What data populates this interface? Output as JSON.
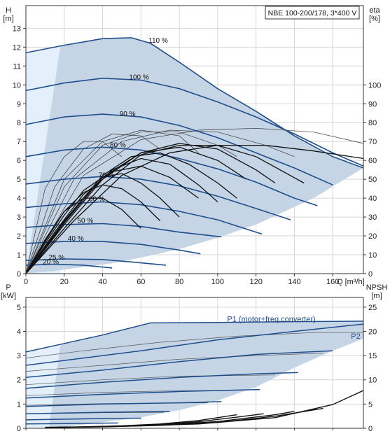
{
  "title_box": "NBE 100-200/178, 3*400 V",
  "colors": {
    "envelope_fill": "#c5d5e6",
    "light_fill": "#e3f0fb",
    "curve_dark_blue": "#1f4e8c",
    "curve_thin": "#333333",
    "eff_black": "#111111"
  },
  "chart_data": [
    {
      "type": "line",
      "name": "pump-curves-head",
      "xlabel": "Q [m³/h]",
      "ylabel_lines": [
        "H",
        "[m]"
      ],
      "y2label_lines": [
        "eta",
        "[%]"
      ],
      "xlim": [
        0,
        176
      ],
      "ylim": [
        0,
        14.2
      ],
      "y2lim": [
        0,
        142
      ],
      "xticks": [
        0,
        20,
        40,
        60,
        80,
        100,
        120,
        140,
        160
      ],
      "yticks": [
        0,
        1,
        2,
        3,
        4,
        5,
        6,
        7,
        8,
        9,
        10,
        11,
        12,
        13
      ],
      "y2ticks": [
        0,
        10,
        20,
        30,
        40,
        50,
        60,
        70,
        80,
        90,
        100
      ],
      "grid": true,
      "head_curves": [
        {
          "label": "110 %",
          "label_at": [
            69,
            12.35
          ],
          "x": [
            0,
            20,
            40,
            55,
            65,
            80,
            100,
            120,
            140,
            160,
            176
          ],
          "y": [
            11.7,
            12.1,
            12.45,
            12.5,
            12.2,
            11.2,
            9.8,
            8.6,
            7.3,
            6.2,
            5.6
          ]
        },
        {
          "label": "100 %",
          "label_at": [
            59,
            10.4
          ],
          "x": [
            0,
            20,
            40,
            60,
            80,
            100,
            120,
            140,
            160,
            176
          ],
          "y": [
            9.7,
            10.1,
            10.35,
            10.25,
            9.8,
            9.1,
            8.3,
            7.4,
            6.4,
            5.7
          ]
        },
        {
          "label": "90 %",
          "label_at": [
            53,
            8.45
          ],
          "x": [
            0,
            20,
            40,
            60,
            80,
            100,
            120,
            140,
            160
          ],
          "y": [
            7.9,
            8.3,
            8.45,
            8.3,
            7.85,
            7.2,
            6.4,
            5.6,
            4.7
          ]
        },
        {
          "label": "80 %",
          "label_at": [
            48,
            6.8
          ],
          "x": [
            0,
            20,
            40,
            60,
            80,
            100,
            120,
            140,
            152
          ],
          "y": [
            6.2,
            6.55,
            6.7,
            6.55,
            6.1,
            5.55,
            4.85,
            4.0,
            3.6
          ]
        },
        {
          "label": "70 %",
          "label_at": [
            42,
            5.2
          ],
          "x": [
            0,
            20,
            40,
            60,
            80,
            100,
            120,
            138
          ],
          "y": [
            4.75,
            5.0,
            5.15,
            5.0,
            4.65,
            4.1,
            3.45,
            2.85
          ]
        },
        {
          "label": "60 %",
          "label_at": [
            37,
            3.95
          ],
          "x": [
            0,
            20,
            40,
            60,
            80,
            100,
            123
          ],
          "y": [
            3.5,
            3.7,
            3.8,
            3.65,
            3.3,
            2.85,
            2.1
          ]
        },
        {
          "label": "50 %",
          "label_at": [
            31,
            2.8
          ],
          "x": [
            0,
            20,
            40,
            60,
            80,
            102
          ],
          "y": [
            2.45,
            2.6,
            2.65,
            2.5,
            2.2,
            1.95
          ]
        },
        {
          "label": "40 %",
          "label_at": [
            26,
            1.85
          ],
          "x": [
            0,
            20,
            40,
            60,
            80,
            91
          ],
          "y": [
            1.6,
            1.7,
            1.7,
            1.55,
            1.25,
            1.05
          ]
        },
        {
          "label": "25 %",
          "label_at": [
            16,
            0.85
          ],
          "x": [
            0,
            20,
            40,
            55,
            73
          ],
          "y": [
            0.7,
            0.78,
            0.75,
            0.62,
            0.45
          ]
        },
        {
          "label": "20 %",
          "label_at": [
            13,
            0.62
          ],
          "x": [
            0,
            15,
            30,
            45
          ],
          "y": [
            0.45,
            0.5,
            0.45,
            0.3
          ]
        }
      ],
      "efficiency_curves_dark": [
        {
          "x": [
            0,
            10,
            20,
            30,
            40,
            50,
            60
          ],
          "y": [
            0,
            18,
            33,
            40,
            40,
            34,
            24
          ]
        },
        {
          "x": [
            0,
            10,
            20,
            30,
            40,
            50,
            60,
            70
          ],
          "y": [
            0,
            17,
            33,
            43,
            47,
            45,
            38,
            28
          ]
        },
        {
          "x": [
            0,
            10,
            20,
            30,
            40,
            50,
            60,
            70,
            80
          ],
          "y": [
            0,
            16,
            31,
            44,
            51,
            53,
            48,
            40,
            30
          ]
        },
        {
          "x": [
            0,
            15,
            30,
            45,
            60,
            75,
            90
          ],
          "y": [
            0,
            22,
            42,
            54,
            57,
            51,
            40
          ]
        },
        {
          "x": [
            0,
            15,
            30,
            45,
            60,
            75,
            90,
            100
          ],
          "y": [
            0,
            21,
            40,
            55,
            61,
            58,
            47,
            38
          ]
        },
        {
          "x": [
            0,
            20,
            40,
            55,
            70,
            85,
            100,
            110
          ],
          "y": [
            0,
            28,
            52,
            62,
            64,
            58,
            48,
            40
          ]
        },
        {
          "x": [
            0,
            20,
            40,
            60,
            80,
            100,
            115
          ],
          "y": [
            0,
            27,
            51,
            64,
            67,
            60,
            50
          ]
        },
        {
          "x": [
            0,
            20,
            40,
            60,
            80,
            100,
            120,
            130
          ],
          "y": [
            0,
            26,
            50,
            64,
            69,
            66,
            55,
            48
          ]
        },
        {
          "x": [
            0,
            20,
            40,
            60,
            80,
            100,
            120,
            145
          ],
          "y": [
            0,
            24,
            47,
            63,
            68,
            68,
            62,
            48
          ]
        },
        {
          "x": [
            0,
            25,
            50,
            75,
            100,
            125,
            150,
            176
          ],
          "y": [
            0,
            28,
            52,
            64,
            68,
            68,
            65,
            61
          ]
        }
      ],
      "efficiency_curves_thin": [
        {
          "x": [
            0,
            10,
            20,
            30,
            40,
            50
          ],
          "y": [
            0,
            45,
            62,
            70,
            70,
            62
          ]
        },
        {
          "x": [
            0,
            15,
            30,
            45,
            60,
            70
          ],
          "y": [
            0,
            46,
            66,
            74,
            73,
            66
          ]
        },
        {
          "x": [
            0,
            20,
            40,
            60,
            80,
            90
          ],
          "y": [
            0,
            50,
            70,
            76,
            73,
            64
          ]
        },
        {
          "x": [
            0,
            20,
            40,
            60,
            80,
            100,
            110
          ],
          "y": [
            0,
            46,
            68,
            75,
            75,
            68,
            62
          ]
        },
        {
          "x": [
            0,
            25,
            50,
            75,
            100,
            125,
            140
          ],
          "y": [
            0,
            50,
            70,
            76,
            75,
            68,
            62
          ]
        },
        {
          "x": [
            0,
            30,
            60,
            90,
            120,
            150,
            176
          ],
          "y": [
            0,
            52,
            71,
            76,
            77,
            75,
            69
          ]
        }
      ]
    },
    {
      "type": "line",
      "name": "power-npsh",
      "xlim": [
        0,
        176
      ],
      "ylim": [
        0,
        5.4
      ],
      "y2lim": [
        0,
        27
      ],
      "ylabel_lines": [
        "P",
        "[kW]"
      ],
      "y2label_lines": [
        "NPSH",
        "[m]"
      ],
      "yticks": [
        0,
        1,
        2,
        3,
        4,
        5
      ],
      "y2ticks": [
        0,
        5,
        10,
        15,
        20,
        25
      ],
      "grid": true,
      "series_labels": [
        {
          "name": "P1 (motor+freq.converter)",
          "label_at": [
            128,
            4.4
          ]
        },
        {
          "name": "P2",
          "label_at": [
            172,
            3.7
          ]
        }
      ],
      "power_curves_dark": [
        {
          "x": [
            0,
            20,
            40,
            65,
            100,
            140,
            176
          ],
          "y": [
            3.15,
            3.5,
            3.85,
            4.35,
            4.37,
            4.4,
            4.42
          ]
        },
        {
          "x": [
            0,
            30,
            60,
            100,
            140,
            176
          ],
          "y": [
            2.6,
            2.9,
            3.2,
            3.65,
            4.0,
            4.3
          ]
        },
        {
          "x": [
            0,
            40,
            80,
            120,
            160
          ],
          "y": [
            2.1,
            2.4,
            2.75,
            3.05,
            3.2
          ]
        },
        {
          "x": [
            0,
            40,
            80,
            120,
            142
          ],
          "y": [
            1.65,
            1.9,
            2.1,
            2.25,
            2.3
          ]
        },
        {
          "x": [
            0,
            40,
            80,
            122
          ],
          "y": [
            1.25,
            1.4,
            1.52,
            1.6
          ]
        },
        {
          "x": [
            0,
            40,
            80,
            102
          ],
          "y": [
            0.9,
            1.0,
            1.05,
            1.1
          ]
        },
        {
          "x": [
            0,
            40,
            75
          ],
          "y": [
            0.6,
            0.66,
            0.7
          ]
        },
        {
          "x": [
            0,
            40,
            60
          ],
          "y": [
            0.35,
            0.4,
            0.42
          ]
        },
        {
          "x": [
            0,
            25,
            48
          ],
          "y": [
            0.18,
            0.2,
            0.22
          ]
        }
      ],
      "power_curves_thin": [
        {
          "x": [
            0,
            30,
            70,
            110,
            150,
            176
          ],
          "y": [
            2.9,
            3.2,
            3.55,
            3.8,
            3.95,
            3.95
          ]
        },
        {
          "x": [
            0,
            40,
            80,
            120,
            155
          ],
          "y": [
            2.35,
            2.6,
            2.85,
            3.0,
            3.1
          ]
        },
        {
          "x": [
            0,
            40,
            80,
            130
          ],
          "y": [
            1.8,
            2.0,
            2.15,
            2.2
          ]
        },
        {
          "x": [
            0,
            40,
            80,
            115
          ],
          "y": [
            1.35,
            1.48,
            1.55,
            1.58
          ]
        },
        {
          "x": [
            0,
            40,
            95
          ],
          "y": [
            0.95,
            1.02,
            1.05
          ]
        },
        {
          "x": [
            0,
            40,
            72
          ],
          "y": [
            0.6,
            0.64,
            0.66
          ]
        }
      ],
      "npsh_curves": [
        {
          "x": [
            10,
            30,
            50,
            70,
            90,
            110
          ],
          "y": [
            0.2,
            0.3,
            0.5,
            0.9,
            1.6,
            2.8
          ]
        },
        {
          "x": [
            10,
            30,
            50,
            70,
            90,
            110,
            124
          ],
          "y": [
            0.15,
            0.3,
            0.45,
            0.8,
            1.35,
            2.3,
            3.0
          ]
        },
        {
          "x": [
            10,
            40,
            70,
            100,
            130,
            140
          ],
          "y": [
            0.15,
            0.35,
            0.7,
            1.4,
            2.8,
            3.5
          ]
        },
        {
          "x": [
            10,
            40,
            70,
            100,
            130,
            155
          ],
          "y": [
            0.15,
            0.3,
            0.6,
            1.2,
            2.5,
            4.1
          ]
        },
        {
          "x": [
            10,
            50,
            90,
            130,
            160,
            176
          ],
          "y": [
            0.15,
            0.4,
            0.9,
            2.2,
            4.9,
            7.8
          ]
        }
      ]
    }
  ]
}
